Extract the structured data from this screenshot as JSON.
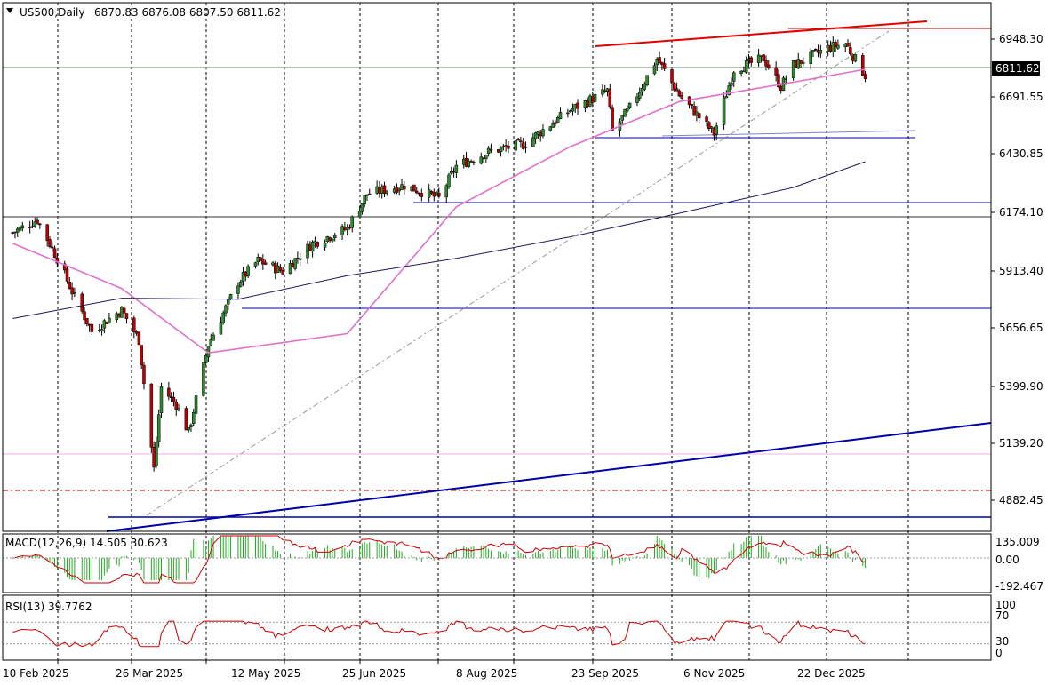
{
  "header": {
    "symbol": "US500,Daily",
    "ohlc": "6870.83 6876.08 6807.50 6811.62"
  },
  "current_price": "6811.62",
  "macd": {
    "title": "MACD(12,26,9) 14.505 30.623",
    "ticks": [
      "135.009",
      "0.00",
      "-192.467"
    ]
  },
  "rsi": {
    "title": "RSI(13) 39.7762",
    "ticks": [
      "100",
      "70",
      "30",
      "0"
    ]
  },
  "colors": {
    "bull": "#2e8b2e",
    "bear": "#c00000",
    "ma_fast": "#e070d0",
    "ma_slow": "#1a1a5a",
    "level_blue": "#0000aa",
    "trend_red": "#e00000",
    "macd_hist": "#22aa22",
    "macd_signal": "#cc0000",
    "rsi_line": "#cc0000"
  },
  "chart_data": {
    "type": "candlestick",
    "title": "US500,Daily",
    "ylim": [
      4690,
      7150
    ],
    "y_ticks": [
      6948.3,
      6691.55,
      6430.85,
      6174.1,
      5913.4,
      5656.65,
      5399.9,
      5139.2,
      4882.45
    ],
    "x_labels": [
      "10 Feb 2025",
      "26 Mar 2025",
      "12 May 2025",
      "25 Jun 2025",
      "8 Aug 2025",
      "23 Sep 2025",
      "6 Nov 2025",
      "22 Dec 2025"
    ],
    "close_path": [
      [
        "10 Feb 2025",
        6080
      ],
      [
        "20 Feb 2025",
        6140
      ],
      [
        "28 Feb 2025",
        5960
      ],
      [
        "7 Mar 2025",
        5780
      ],
      [
        "14 Mar 2025",
        5620
      ],
      [
        "21 Mar 2025",
        5680
      ],
      [
        "26 Mar 2025",
        5720
      ],
      [
        "2 Apr 2025",
        5580
      ],
      [
        "8 Apr 2025",
        4980
      ],
      [
        "11 Apr 2025",
        5360
      ],
      [
        "17 Apr 2025",
        5280
      ],
      [
        "22 Apr 2025",
        5150
      ],
      [
        "30 Apr 2025",
        5560
      ],
      [
        "12 May 2025",
        5850
      ],
      [
        "20 May 2025",
        5950
      ],
      [
        "30 May 2025",
        5900
      ],
      [
        "11 Jun 2025",
        6030
      ],
      [
        "25 Jun 2025",
        6100
      ],
      [
        "3 Jul 2025",
        6260
      ],
      [
        "18 Jul 2025",
        6300
      ],
      [
        "1 Aug 2025",
        6240
      ],
      [
        "8 Aug 2025",
        6390
      ],
      [
        "22 Aug 2025",
        6460
      ],
      [
        "4 Sep 2025",
        6490
      ],
      [
        "23 Sep 2025",
        6650
      ],
      [
        "8 Oct 2025",
        6740
      ],
      [
        "10 Oct 2025",
        6550
      ],
      [
        "17 Oct 2025",
        6660
      ],
      [
        "28 Oct 2025",
        6890
      ],
      [
        "6 Nov 2025",
        6720
      ],
      [
        "20 Nov 2025",
        6540
      ],
      [
        "28 Nov 2025",
        6840
      ],
      [
        "10 Dec 2025",
        6890
      ],
      [
        "17 Dec 2025",
        6760
      ],
      [
        "22 Dec 2025",
        6860
      ],
      [
        "5 Jan 2026",
        6940
      ],
      [
        "12 Jan 2026",
        6960
      ],
      [
        "20 Jan 2026",
        6811.62
      ]
    ],
    "moving_averages": [
      {
        "name": "fast",
        "values": [
          [
            "10 Feb 2025",
            6030
          ],
          [
            "26 Mar 2025",
            5820
          ],
          [
            "30 Apr 2025",
            5520
          ],
          [
            "25 Jun 2025",
            5610
          ],
          [
            "8 Aug 2025",
            6200
          ],
          [
            "23 Sep 2025",
            6480
          ],
          [
            "6 Nov 2025",
            6690
          ],
          [
            "22 Dec 2025",
            6780
          ],
          [
            "20 Jan 2026",
            6840
          ]
        ]
      },
      {
        "name": "slow",
        "values": [
          [
            "10 Feb 2025",
            5680
          ],
          [
            "26 Mar 2025",
            5775
          ],
          [
            "12 May 2025",
            5770
          ],
          [
            "25 Jun 2025",
            5880
          ],
          [
            "8 Aug 2025",
            5960
          ],
          [
            "23 Sep 2025",
            6060
          ],
          [
            "6 Nov 2025",
            6170
          ],
          [
            "22 Dec 2025",
            6290
          ],
          [
            "20 Jan 2026",
            6410
          ]
        ]
      }
    ],
    "horizontal_levels": [
      6811.62,
      6140,
      6225,
      5735,
      4715
    ],
    "grid": true
  }
}
